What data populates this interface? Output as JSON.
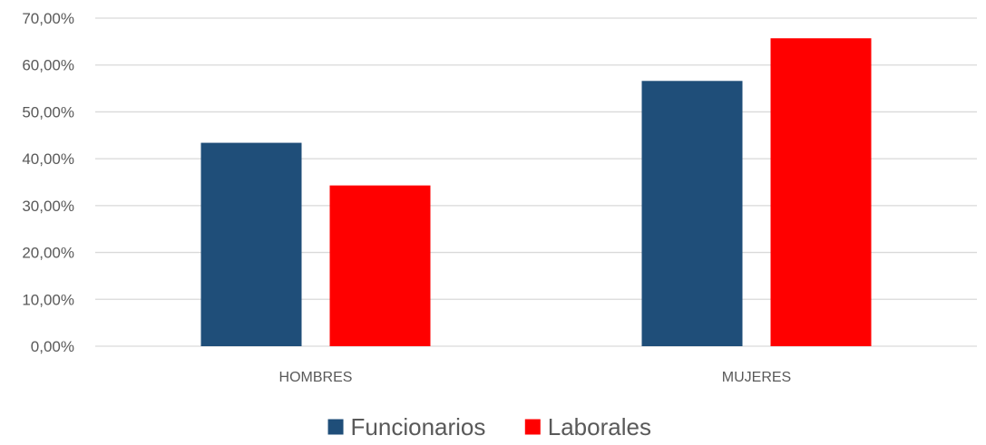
{
  "chart_data": {
    "type": "bar",
    "categories": [
      "HOMBRES",
      "MUJERES"
    ],
    "series": [
      {
        "name": "Funcionarios",
        "color": "#1F4E79",
        "values": [
          43.4,
          56.6
        ]
      },
      {
        "name": "Laborales",
        "color": "#FF0000",
        "values": [
          34.3,
          65.7
        ]
      }
    ],
    "ylim": [
      0,
      70
    ],
    "yticks": [
      "0,00%",
      "10,00%",
      "20,00%",
      "30,00%",
      "40,00%",
      "50,00%",
      "60,00%",
      "70,00%"
    ],
    "grid": true,
    "legend": "bottom-center",
    "title": "",
    "xlabel": "",
    "ylabel": ""
  }
}
